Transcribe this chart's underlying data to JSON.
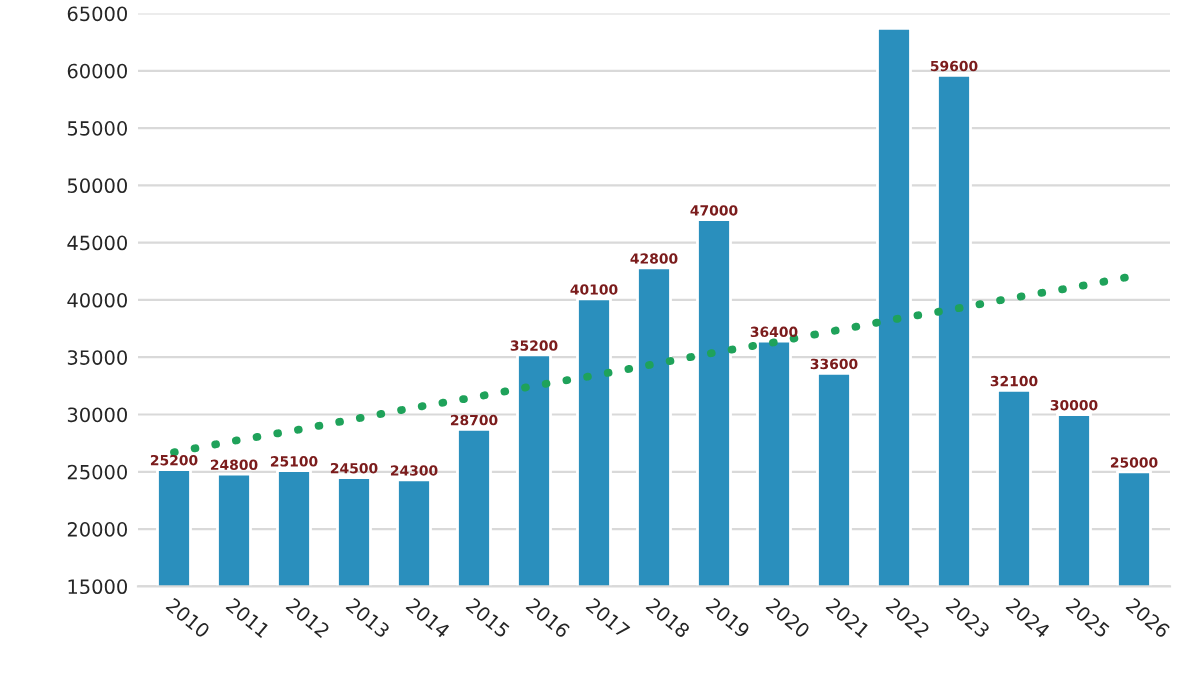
{
  "chart_data": {
    "type": "bar",
    "categories": [
      "2010",
      "2011",
      "2012",
      "2013",
      "2014",
      "2015",
      "2016",
      "2017",
      "2018",
      "2019",
      "2020",
      "2021",
      "2022",
      "2023",
      "2024",
      "2025",
      "2026"
    ],
    "series": [
      {
        "color": "#2a8fbd",
        "values": [
          25200,
          24800,
          25100,
          24500,
          24300,
          28700,
          35200,
          40100,
          42800,
          47000,
          36400,
          33600,
          63700,
          59600,
          32100,
          30000,
          25000
        ],
        "value_labels": [
          "25200",
          "24800",
          "25100",
          "24500",
          "24300",
          "28700",
          "35200",
          "40100",
          "42800",
          "47000",
          "36400",
          "33600",
          null,
          "59600",
          "32100",
          "30000",
          "25000"
        ]
      },
      {
        "type": "line",
        "color": "#1fa25a",
        "line_style": "dotted",
        "values": [
          26700,
          27700,
          28600,
          29600,
          30600,
          31500,
          32500,
          33400,
          34400,
          35400,
          36300,
          37300,
          38300,
          39200,
          40200,
          41100,
          42100
        ]
      }
    ],
    "ylim": [
      15000,
      65000
    ],
    "yticks": [
      15000,
      20000,
      25000,
      30000,
      35000,
      40000,
      45000,
      50000,
      55000,
      60000,
      65000
    ],
    "grid": "y"
  }
}
